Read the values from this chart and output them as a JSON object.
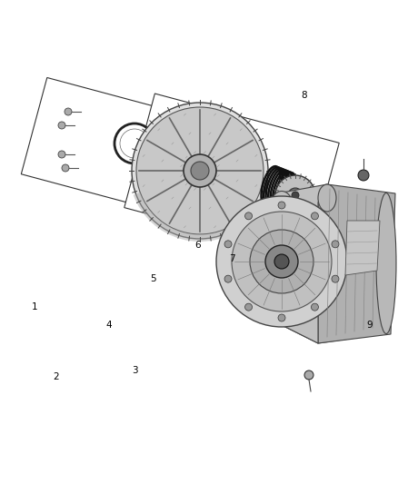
{
  "background_color": "#ffffff",
  "fig_width": 4.38,
  "fig_height": 5.33,
  "dpi": 100,
  "line_color": "#333333",
  "label_fontsize": 7.5
}
